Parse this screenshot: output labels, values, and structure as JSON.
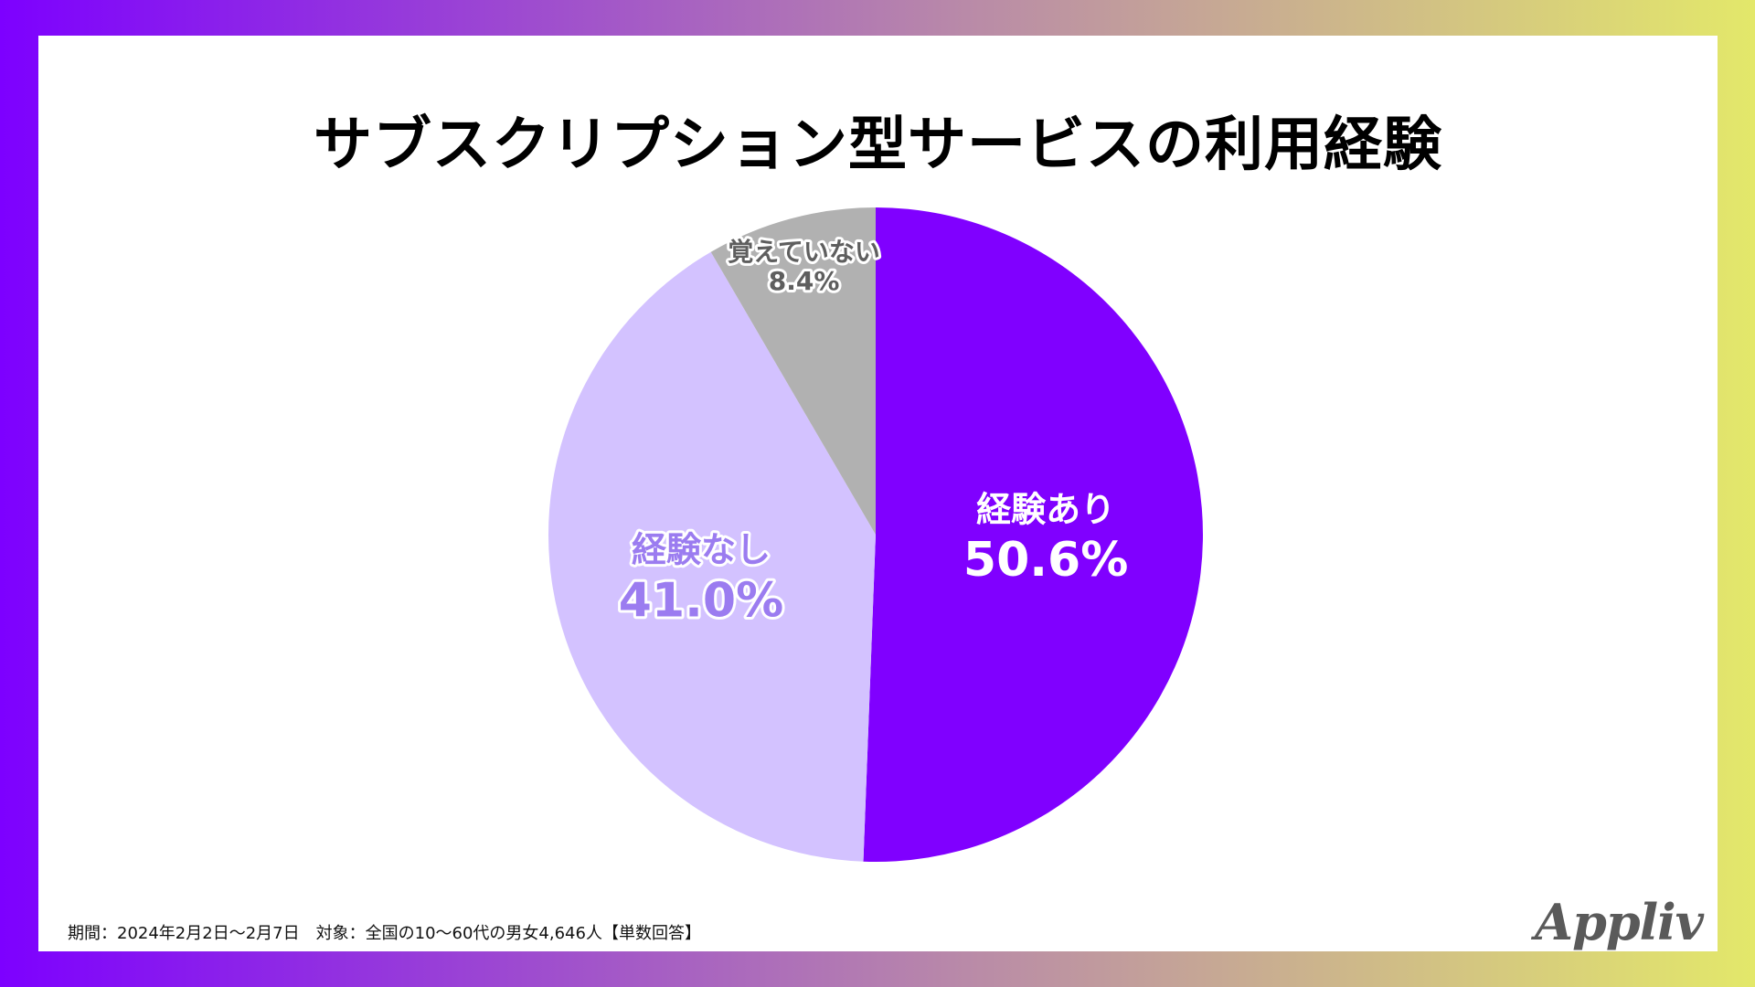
{
  "colors": {
    "experienced": "#8000ff",
    "not_experienced": "#d3c2ff",
    "dont_remember": "#b1b1b1",
    "label_not_experienced": "#9b7cf0",
    "label_dont_remember": "#5e5e5e"
  },
  "footer": {
    "note": "期間：2024年2月2日〜2月7日　対象：全国の10〜60代の男女4,646人【単数回答】",
    "logo": "Appliv"
  },
  "chart_data": {
    "type": "pie",
    "title": "サブスクリプション型サービスの利用経験",
    "slices": [
      {
        "label": "経験あり",
        "value": 50.6,
        "display": "50.6%",
        "color": "#8000ff"
      },
      {
        "label": "経験なし",
        "value": 41.0,
        "display": "41.0%",
        "color": "#d3c2ff"
      },
      {
        "label": "覚えていない",
        "value": 8.4,
        "display": "8.4%",
        "color": "#b1b1b1"
      }
    ],
    "start": "12 o'clock",
    "direction": "clockwise",
    "legend": "none",
    "labels": "inside slices"
  }
}
